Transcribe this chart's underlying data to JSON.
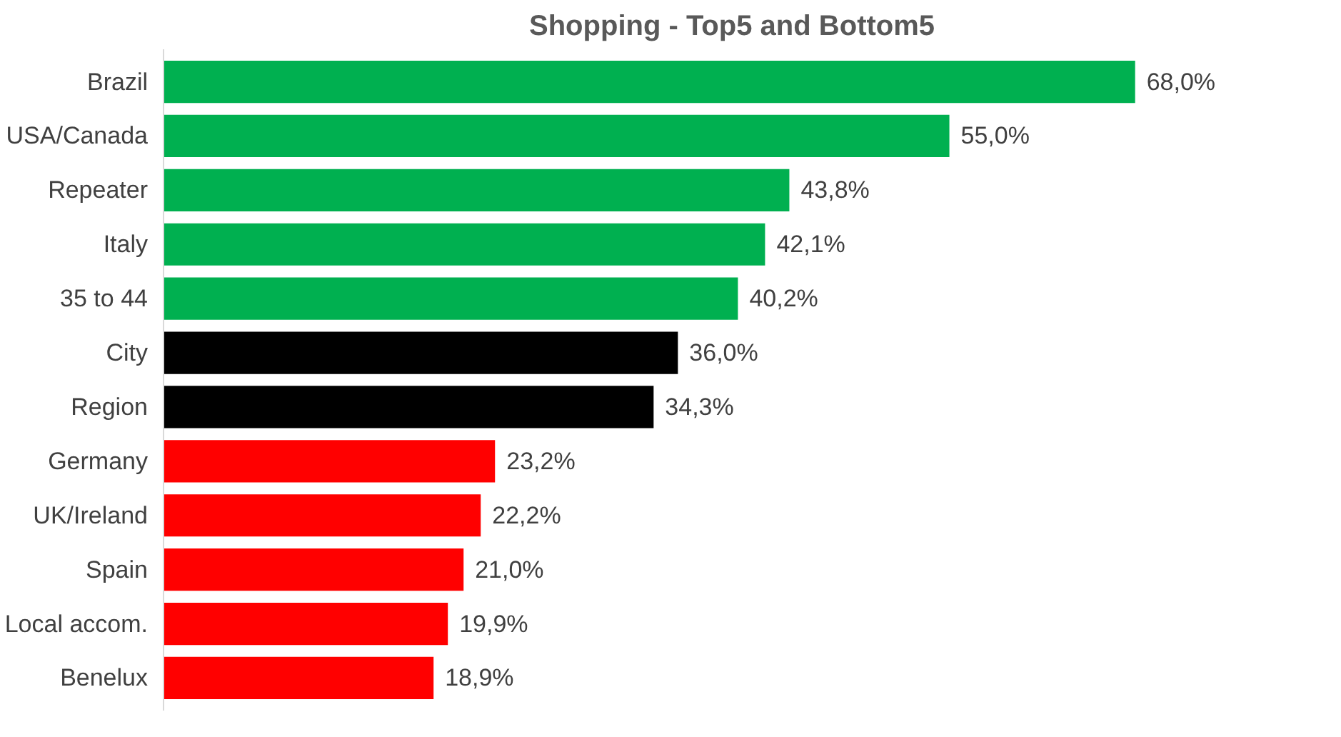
{
  "chart_data": {
    "type": "bar",
    "orientation": "horizontal",
    "title": "Shopping - Top5 and Bottom5",
    "categories": [
      "Brazil",
      "USA/Canada",
      "Repeater",
      "Italy",
      "35 to 44",
      "City",
      "Region",
      "Germany",
      "UK/Ireland",
      "Spain",
      "Local accom.",
      "Benelux"
    ],
    "values": [
      68.0,
      55.0,
      43.8,
      42.1,
      40.2,
      36.0,
      34.3,
      23.2,
      22.2,
      21.0,
      19.9,
      18.9
    ],
    "value_labels": [
      "68,0%",
      "55,0%",
      "43,8%",
      "42,1%",
      "40,2%",
      "36,0%",
      "34,3%",
      "23,2%",
      "22,2%",
      "21,0%",
      "19,9%",
      "18,9%"
    ],
    "colors": [
      "#00b050",
      "#00b050",
      "#00b050",
      "#00b050",
      "#00b050",
      "#000000",
      "#000000",
      "#ff0000",
      "#ff0000",
      "#ff0000",
      "#ff0000",
      "#ff0000"
    ],
    "grid": false
  }
}
